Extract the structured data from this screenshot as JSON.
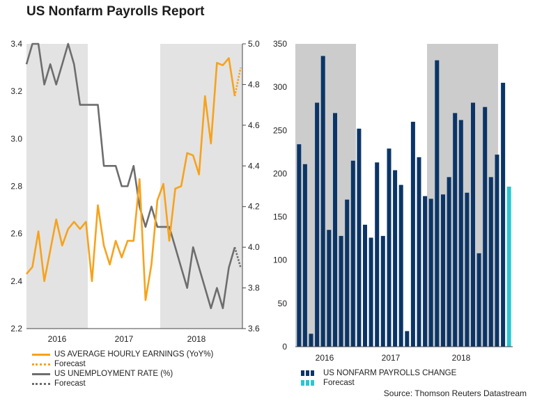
{
  "title": "US Nonfarm Payrolls Report",
  "source": "Source: Thomson Reuters Datastream",
  "colors": {
    "earnings": "#f7a21b",
    "unemployment": "#6d6d6d",
    "payrolls": "#0b3566",
    "forecast_bar": "#2ec4d0",
    "shade_left": "#e3e3e3",
    "shade_right": "#cccccc"
  },
  "left_legend": {
    "earnings": "US AVERAGE HOURLY EARNINGS (YoY%)",
    "earnings_forecast": "Forecast",
    "unemployment": "US UNEMPLOYMENT RATE (%)",
    "unemployment_forecast": "Forecast"
  },
  "right_legend": {
    "payrolls": "US NONFARM PAYROLLS CHANGE",
    "payrolls_forecast": "Forecast"
  },
  "chart_data": [
    {
      "type": "line",
      "years": [
        "2016",
        "2017",
        "2018"
      ],
      "grid": false,
      "y_left": {
        "ylim": [
          2.2,
          3.4
        ],
        "ticks": [
          "2.2",
          "2.4",
          "2.6",
          "2.8",
          "3.0",
          "3.2",
          "3.4"
        ]
      },
      "y_right": {
        "ylim": [
          3.6,
          5.0
        ],
        "ticks": [
          "3.6",
          "3.8",
          "4.0",
          "4.2",
          "4.4",
          "4.6",
          "4.8",
          "5.0"
        ]
      },
      "series": [
        {
          "name": "US AVERAGE HOURLY EARNINGS (YoY%)",
          "axis": "left",
          "values": [
            2.43,
            2.46,
            2.61,
            2.4,
            2.53,
            2.66,
            2.55,
            2.62,
            2.65,
            2.62,
            2.65,
            2.4,
            2.72,
            2.55,
            2.47,
            2.57,
            2.5,
            2.57,
            2.57,
            2.83,
            2.32,
            2.47,
            2.74,
            2.81,
            2.57,
            2.79,
            2.8,
            2.94,
            2.93,
            2.85,
            3.18,
            2.98,
            3.32,
            3.31,
            3.34,
            3.18
          ],
          "forecast": [
            3.18,
            3.3
          ]
        },
        {
          "name": "US UNEMPLOYMENT RATE (%)",
          "axis": "right",
          "values": [
            4.9,
            5.0,
            5.0,
            4.8,
            4.9,
            4.8,
            4.9,
            5.0,
            4.9,
            4.7,
            4.7,
            4.7,
            4.7,
            4.4,
            4.4,
            4.4,
            4.3,
            4.3,
            4.4,
            4.2,
            4.1,
            4.2,
            4.1,
            4.1,
            4.1,
            4.0,
            3.9,
            3.8,
            4.0,
            3.9,
            3.8,
            3.7,
            3.8,
            3.7,
            3.9,
            4.0
          ],
          "forecast": [
            4.0,
            3.9
          ]
        }
      ]
    },
    {
      "type": "bar",
      "years": [
        "2016",
        "2017",
        "2018"
      ],
      "ylim": [
        0,
        350
      ],
      "ticks": [
        "0",
        "50",
        "100",
        "150",
        "200",
        "250",
        "300",
        "350"
      ],
      "grid": false,
      "series": [
        {
          "name": "US NONFARM PAYROLLS CHANGE",
          "values": [
            234,
            211,
            15,
            282,
            336,
            135,
            270,
            128,
            170,
            215,
            252,
            141,
            126,
            213,
            128,
            229,
            204,
            187,
            18,
            260,
            219,
            174,
            171,
            331,
            176,
            196,
            270,
            262,
            178,
            282,
            108,
            277,
            196,
            222,
            305
          ]
        },
        {
          "name": "Forecast",
          "values": [
            185
          ]
        }
      ]
    }
  ]
}
